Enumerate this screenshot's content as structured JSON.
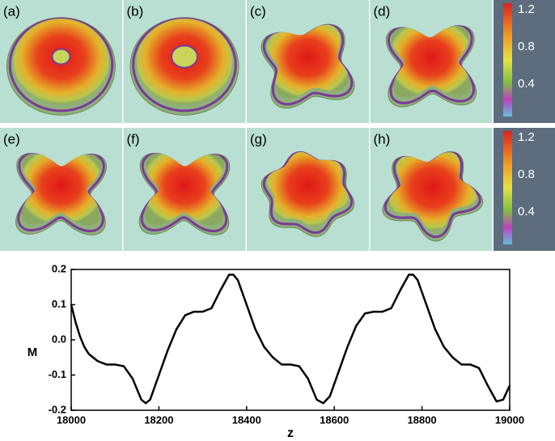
{
  "panels": {
    "labels": [
      "(a)",
      "(b)",
      "(c)",
      "(d)",
      "(e)",
      "(f)",
      "(g)",
      "(h)"
    ],
    "colorbar_ticks": [
      1.2,
      0.8,
      0.4
    ]
  },
  "chart_data": {
    "type": "line",
    "xlabel": "z",
    "ylabel": "M",
    "xlim": [
      18000,
      19000
    ],
    "xticks": [
      18000,
      18200,
      18400,
      18600,
      18800,
      19000
    ],
    "ylim": [
      -0.2,
      0.2
    ],
    "yticks": [
      0.2,
      0.1,
      {
        "value": 0,
        "label": "0.0"
      },
      -0.1,
      -0.2
    ],
    "x": [
      18000,
      18010,
      18020,
      18030,
      18040,
      18060,
      18080,
      18100,
      18120,
      18140,
      18160,
      18170,
      18180,
      18200,
      18220,
      18240,
      18260,
      18280,
      18300,
      18320,
      18340,
      18360,
      18370,
      18380,
      18400,
      18420,
      18440,
      18460,
      18480,
      18500,
      18520,
      18540,
      18560,
      18575,
      18590,
      18610,
      18630,
      18650,
      18670,
      18690,
      18710,
      18730,
      18750,
      18770,
      18780,
      18790,
      18810,
      18830,
      18850,
      18870,
      18890,
      18910,
      18930,
      18950,
      18970,
      18985,
      19000
    ],
    "series": [
      {
        "color": "#000000",
        "values": [
          0.1,
          0.05,
          0.01,
          -0.02,
          -0.04,
          -0.06,
          -0.07,
          -0.07,
          -0.075,
          -0.11,
          -0.17,
          -0.18,
          -0.17,
          -0.1,
          -0.03,
          0.03,
          0.07,
          0.08,
          0.08,
          0.09,
          0.14,
          0.185,
          0.185,
          0.17,
          0.1,
          0.03,
          -0.02,
          -0.05,
          -0.07,
          -0.07,
          -0.075,
          -0.11,
          -0.17,
          -0.18,
          -0.16,
          -0.09,
          -0.02,
          0.04,
          0.075,
          0.08,
          0.08,
          0.09,
          0.14,
          0.185,
          0.185,
          0.17,
          0.1,
          0.03,
          -0.02,
          -0.05,
          -0.07,
          -0.07,
          -0.08,
          -0.13,
          -0.175,
          -0.17,
          -0.13
        ]
      }
    ]
  }
}
